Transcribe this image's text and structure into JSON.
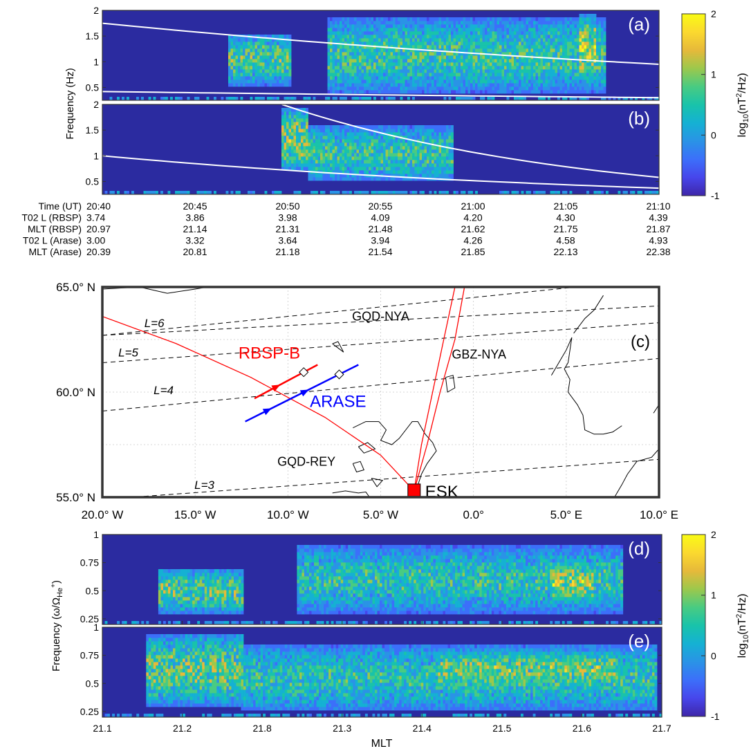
{
  "colors": {
    "background": "#2b2ba0",
    "colormap": [
      "#3e26a8",
      "#4746eb",
      "#3c6ffa",
      "#2a93e6",
      "#15b1d3",
      "#19c3aa",
      "#49cb82",
      "#9cc84c",
      "#e6b93a",
      "#fbd92f",
      "#f9fb14"
    ],
    "axis_frame": "#333333",
    "guide_line": "#ffffff",
    "rbsp_color": "#ff0000",
    "arase_color": "#0000ff",
    "station_color": "#ff0000",
    "grid": "#c8c8c8"
  },
  "chart_data": [
    {
      "id": "a",
      "type": "heatmap",
      "panel_label": "(a)",
      "ylim": [
        0.25,
        2
      ],
      "yticks": [
        "2",
        "1.5",
        "1",
        "0.5"
      ],
      "ylabel": "Frequency (Hz)",
      "xlim_minutes": [
        0,
        31
      ],
      "guide_lines": [
        {
          "x": [
            0,
            31
          ],
          "y": [
            1.75,
            0.95
          ]
        },
        {
          "x": [
            0,
            31
          ],
          "y": [
            0.42,
            0.3
          ]
        }
      ],
      "bursts": [
        {
          "t_start": 7,
          "t_end": 10.5,
          "f_low": 0.55,
          "f_high": 1.55,
          "intensity": 1.2
        },
        {
          "t_start": 12.5,
          "t_end": 28,
          "f_low": 0.4,
          "f_high": 1.85,
          "intensity": 1.0
        },
        {
          "t_start": 26.5,
          "t_end": 27.5,
          "f_low": 0.6,
          "f_high": 1.9,
          "intensity": 1.8
        }
      ]
    },
    {
      "id": "b",
      "type": "heatmap",
      "panel_label": "(b)",
      "ylim": [
        0.25,
        2
      ],
      "yticks": [
        "2",
        "1.5",
        "1",
        "0.5"
      ],
      "xlim_minutes": [
        0,
        31
      ],
      "guide_lines": [
        {
          "x": [
            0,
            31
          ],
          "y": [
            1.0,
            0.37
          ]
        },
        {
          "x": [
            10,
            31
          ],
          "y": [
            2.0,
            0.58
          ]
        }
      ],
      "bursts": [
        {
          "t_start": 10,
          "t_end": 11.5,
          "f_low": 0.7,
          "f_high": 1.95,
          "intensity": 1.5
        },
        {
          "t_start": 11.5,
          "t_end": 19.5,
          "f_low": 0.5,
          "f_high": 1.6,
          "intensity": 1.0
        }
      ]
    },
    {
      "id": "d",
      "type": "heatmap",
      "panel_label": "(d)",
      "ylim": [
        0.2,
        1
      ],
      "yticks": [
        "1",
        "0.75",
        "0.5",
        "0.25"
      ],
      "ylabel_main": "Frequency (ω/Ω",
      "ylabel_sub": "He",
      "ylabel_sup": "+",
      "ylabel_end": ")",
      "bursts": [
        {
          "t_start": 0.1,
          "t_end": 0.25,
          "f_low": 0.3,
          "f_high": 0.7,
          "intensity": 1.3
        },
        {
          "t_start": 0.35,
          "t_end": 0.93,
          "f_low": 0.3,
          "f_high": 0.9,
          "intensity": 0.9
        },
        {
          "t_start": 0.8,
          "t_end": 0.88,
          "f_low": 0.4,
          "f_high": 0.75,
          "intensity": 1.7
        }
      ]
    },
    {
      "id": "e",
      "type": "heatmap",
      "panel_label": "(e)",
      "ylim": [
        0.2,
        1
      ],
      "yticks": [
        "1",
        "0.75",
        "0.5",
        "0.25"
      ],
      "xlabel": "MLT",
      "xticks": [
        "21.1",
        "21.2",
        "21.8",
        "21.3",
        "21.4",
        "21.5",
        "21.6",
        "21.7"
      ],
      "bursts": [
        {
          "t_start": 0.08,
          "t_end": 0.25,
          "f_low": 0.3,
          "f_high": 0.95,
          "intensity": 1.3
        },
        {
          "t_start": 0.25,
          "t_end": 0.99,
          "f_low": 0.25,
          "f_high": 0.85,
          "intensity": 0.9
        },
        {
          "t_start": 0.6,
          "t_end": 0.92,
          "f_low": 0.45,
          "f_high": 0.8,
          "intensity": 1.4
        }
      ]
    }
  ],
  "colorbar_top": {
    "ticks": [
      "2",
      "1",
      "0",
      "-1"
    ],
    "label": "log10(nT2/Hz)",
    "label_main": "log",
    "label_sub": "10",
    "label_mid": "(nT",
    "label_sup": "2",
    "label_end": "/Hz)"
  },
  "colorbar_bottom": {
    "ticks": [
      "2",
      "1",
      "0",
      "-1"
    ],
    "label_main": "log",
    "label_sub": "10",
    "label_mid": "(nT",
    "label_sup": "2",
    "label_end": "/Hz)"
  },
  "time_table": {
    "rows": [
      {
        "label": "Time (UT)",
        "values": [
          "20:40",
          "20:45",
          "20:50",
          "20:55",
          "21:00",
          "21:05",
          "21:10"
        ]
      },
      {
        "label": "T02 L (RBSP)",
        "values": [
          "3.74",
          "3.86",
          "3.98",
          "4.09",
          "4.20",
          "4.30",
          "4.39"
        ]
      },
      {
        "label": "MLT (RBSP)",
        "values": [
          "20.97",
          "21.14",
          "21.31",
          "21.48",
          "21.62",
          "21.75",
          "21.87"
        ]
      },
      {
        "label": "T02 L (Arase)",
        "values": [
          "3.00",
          "3.32",
          "3.64",
          "3.94",
          "4.26",
          "4.58",
          "4.93"
        ]
      },
      {
        "label": "MLT (Arase)",
        "values": [
          "20.39",
          "20.81",
          "21.18",
          "21.54",
          "21.85",
          "22.13",
          "22.38"
        ]
      }
    ]
  },
  "map": {
    "panel_label": "(c)",
    "lon_range": [
      -20,
      10
    ],
    "lat_range": [
      55,
      65
    ],
    "lat_ticks": [
      "65.0° N",
      "60.0° N",
      "55.0° N"
    ],
    "lon_ticks": [
      "20.0° W",
      "15.0° W",
      "10.0° W",
      "5.0° W",
      "0.0°",
      "5.0° E",
      "10.0° E"
    ],
    "l_shells": [
      {
        "label": "L=6",
        "lon": [
          -20,
          10
        ],
        "lat": [
          62.7,
          65.4
        ]
      },
      {
        "label": "",
        "lon": [
          -20,
          10
        ],
        "lat": [
          62.7,
          64.1
        ]
      },
      {
        "label": "L=5",
        "lon": [
          -20,
          10
        ],
        "lat": [
          61.4,
          63.3
        ]
      },
      {
        "label": "L=4",
        "lon": [
          -20,
          10
        ],
        "lat": [
          59.1,
          61.6
        ]
      },
      {
        "label": "L=3",
        "lon": [
          -20,
          10
        ],
        "lat": [
          54.9,
          56.8
        ]
      }
    ],
    "l_labels": [
      {
        "text": "L=6",
        "lon": -17.2,
        "lat": 63.1
      },
      {
        "text": "L=5",
        "lon": -18.6,
        "lat": 61.7
      },
      {
        "text": "L=4",
        "lon": -16.7,
        "lat": 59.9
      },
      {
        "text": "L=3",
        "lon": -14.5,
        "lat": 55.4
      }
    ],
    "paths": [
      {
        "label": "GQD-REY",
        "lon": [
          -20,
          -16,
          -12,
          -8,
          -5,
          -3.2
        ],
        "lat": [
          63.6,
          62.3,
          60.7,
          58.8,
          57.0,
          55.3
        ]
      },
      {
        "label": "GQD-NYA",
        "lon": [
          -3.2,
          -2.8,
          -2.2,
          -1.6,
          -0.9
        ],
        "lat": [
          55.3,
          57.5,
          60.0,
          62.5,
          65.4
        ]
      },
      {
        "label": "GBZ-NYA",
        "lon": [
          -3.2,
          -2.5,
          -1.8,
          -1.0,
          -0.4
        ],
        "lat": [
          55.3,
          57.5,
          60.0,
          62.5,
          65.4
        ]
      }
    ],
    "path_labels": [
      {
        "text": "GQD-NYA",
        "lon": -5.0,
        "lat": 63.4
      },
      {
        "text": "GBZ-NYA",
        "lon": 0.3,
        "lat": 61.6
      },
      {
        "text": "GQD-REY",
        "lon": -9.0,
        "lat": 56.5
      }
    ],
    "spacecraft": [
      {
        "label": "RBSP-B",
        "lon": [
          -11.8,
          -8.4
        ],
        "lat": [
          59.7,
          61.3
        ],
        "arrow_at": 0.35,
        "marker_at": 0.78,
        "label_lon": -11.0,
        "label_lat": 61.6
      },
      {
        "label": "ARASE",
        "lon": [
          -12.3,
          -6.2
        ],
        "lat": [
          58.6,
          61.3
        ],
        "arrow_at": 0.2,
        "arrow2_at": 0.53,
        "marker_at": 0.83,
        "label_lon": -7.3,
        "label_lat": 59.3
      }
    ],
    "station": {
      "label": "ESK",
      "lon": -3.2,
      "lat": 55.3
    },
    "coast": [
      {
        "lon": [
          -20,
          -18,
          -16.5,
          -15,
          -14,
          -13
        ],
        "lat": [
          64.9,
          65.0,
          64.7,
          64.9,
          65.05,
          65.2
        ]
      },
      {
        "lon": [
          -11,
          -9,
          -7.5,
          -6
        ],
        "lat": [
          65.2,
          65.15,
          65.05,
          65.2
        ]
      },
      {
        "lon": [
          -7.6,
          -7.3,
          -7.0,
          -7.3,
          -7.6
        ],
        "lat": [
          62.3,
          62.1,
          61.9,
          62.4,
          62.3
        ]
      },
      {
        "lon": [
          -1.5,
          -1.1,
          -1.0,
          -1.4,
          -1.5
        ],
        "lat": [
          60.7,
          60.8,
          60.2,
          60.0,
          60.7
        ]
      },
      {
        "lon": [
          -6.5,
          -5.8,
          -5.1,
          -4.7,
          -5.0,
          -4.4,
          -4.0,
          -3.3,
          -3.0,
          -2.6,
          -2.2,
          -2.0,
          -2.5,
          -2.8,
          -3.1
        ],
        "lat": [
          58.3,
          58.6,
          58.6,
          58.2,
          57.7,
          57.5,
          57.8,
          58.6,
          58.6,
          58.0,
          57.6,
          57.2,
          56.6,
          56.1,
          55.3
        ]
      },
      {
        "lon": [
          -6.2,
          -5.7,
          -5.3,
          -5.9,
          -6.2
        ],
        "lat": [
          57.4,
          57.6,
          57.3,
          57.1,
          57.4
        ]
      },
      {
        "lon": [
          -6.5,
          -6.1,
          -5.9,
          -6.3,
          -6.5
        ],
        "lat": [
          56.6,
          56.7,
          56.3,
          56.2,
          56.6
        ]
      },
      {
        "lon": [
          -5.5,
          -4.9,
          -5.2,
          -5.5
        ],
        "lat": [
          55.9,
          55.8,
          55.5,
          55.9
        ]
      },
      {
        "lon": [
          -7.6,
          -6.9,
          -6.2,
          -5.8,
          -5.6
        ],
        "lat": [
          55.2,
          55.3,
          55.2,
          55.25,
          55.0
        ]
      },
      {
        "lon": [
          4.2,
          5.0,
          5.3,
          5.1,
          4.9,
          5.2,
          5.1,
          5.6,
          5.9,
          6.0,
          6.5,
          7.0,
          7.5,
          8.0
        ],
        "lat": [
          60.8,
          62.0,
          62.6,
          61.4,
          61.1,
          60.6,
          60.0,
          59.4,
          58.9,
          58.2,
          58.0,
          58.0,
          58.1,
          58.4
        ]
      },
      {
        "lon": [
          5.4,
          6.0,
          6.5,
          7.0
        ],
        "lat": [
          62.8,
          63.5,
          63.9,
          64.6
        ]
      },
      {
        "lon": [
          7.6,
          8.0,
          8.3,
          8.8,
          9.6,
          10.0
        ],
        "lat": [
          55.0,
          55.6,
          56.1,
          56.7,
          56.9,
          57.3
        ]
      },
      {
        "lon": [
          9.7,
          10.0
        ],
        "lat": [
          59.0,
          59.4
        ]
      }
    ]
  }
}
